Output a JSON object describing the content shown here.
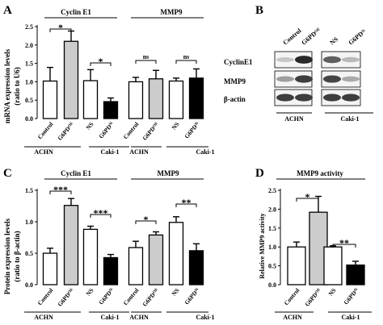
{
  "figure": {
    "panel_letters": [
      "A",
      "B",
      "C",
      "D"
    ]
  },
  "chart_data": [
    {
      "panel": "A",
      "type": "bar",
      "ylabel": "mRNA expression levels",
      "ylabel_sub": "(ratio to U6)",
      "ylim": [
        0,
        2.5
      ],
      "yticks": [
        "0.0",
        "0.5",
        "1.0",
        "1.5",
        "2.0",
        "2.5"
      ],
      "groups": [
        "Cyclin E1",
        "MMP9"
      ],
      "categories": [
        "Control",
        "G6PD",
        "NS",
        "G6PD",
        "Control",
        "G6PD",
        "NS",
        "G6PD"
      ],
      "superscripts": [
        "",
        "OE",
        "",
        "Si",
        "",
        "OE",
        "",
        "Si"
      ],
      "values": [
        1.02,
        2.1,
        1.03,
        0.46,
        1.0,
        1.08,
        1.02,
        1.1
      ],
      "errors": [
        0.37,
        0.28,
        0.3,
        0.1,
        0.12,
        0.23,
        0.08,
        0.25
      ],
      "fills": [
        "#ffffff",
        "#cccccc",
        "#ffffff",
        "#000000",
        "#ffffff",
        "#cccccc",
        "#ffffff",
        "#000000"
      ],
      "cell_lines": [
        "ACHN",
        "Caki-1",
        "ACHN",
        "Caki-1"
      ],
      "significance": [
        "*",
        "*",
        "ns",
        "ns"
      ]
    },
    {
      "panel": "C",
      "type": "bar",
      "ylabel": "Protein expression levels",
      "ylabel_sub": "(ratio to β-actin)",
      "ylim": [
        0,
        1.5
      ],
      "yticks": [
        "0.0",
        "0.5",
        "1.0",
        "1.5"
      ],
      "groups": [
        "Cyclin E1",
        "MMP9"
      ],
      "categories": [
        "Control",
        "G6PD",
        "NS",
        "G6PD",
        "Control",
        "G6PD",
        "NS",
        "G6PD"
      ],
      "superscripts": [
        "",
        "OE",
        "",
        "Si",
        "",
        "OE",
        "",
        "Si"
      ],
      "values": [
        0.5,
        1.26,
        0.88,
        0.43,
        0.59,
        0.79,
        0.99,
        0.54
      ],
      "errors": [
        0.08,
        0.11,
        0.05,
        0.05,
        0.1,
        0.05,
        0.09,
        0.11
      ],
      "fills": [
        "#ffffff",
        "#cccccc",
        "#ffffff",
        "#000000",
        "#ffffff",
        "#cccccc",
        "#ffffff",
        "#000000"
      ],
      "cell_lines": [
        "ACHN",
        "Caki-1",
        "ACHN",
        "Caki-1"
      ],
      "significance": [
        "***",
        "***",
        "*",
        "**"
      ]
    },
    {
      "panel": "D",
      "type": "bar",
      "title": "MMP9 activity",
      "ylabel": "Relative MMP9 activity",
      "ylim": [
        0,
        2.5
      ],
      "yticks": [
        "0.0",
        "0.5",
        "1.0",
        "1.5",
        "2.0",
        "2.5"
      ],
      "categories": [
        "Control",
        "G6PD",
        "NS",
        "G6PD"
      ],
      "superscripts": [
        "",
        "OE",
        "",
        "Si"
      ],
      "values": [
        1.0,
        1.92,
        1.0,
        0.52
      ],
      "errors": [
        0.13,
        0.42,
        0.03,
        0.1
      ],
      "fills": [
        "#ffffff",
        "#cccccc",
        "#ffffff",
        "#000000"
      ],
      "cell_lines": [
        "ACHN",
        "Caki-1"
      ],
      "significance": [
        "*",
        "**"
      ]
    }
  ],
  "blot": {
    "panel": "B",
    "columns": [
      "Control",
      "G6PD",
      "NS",
      "G6PD"
    ],
    "superscripts": [
      "",
      "OE",
      "",
      "Si"
    ],
    "rows": [
      "CyclinE1",
      "MMP9",
      "β-actin"
    ],
    "cell_lines": [
      "ACHN",
      "Caki-1"
    ],
    "intensity": [
      [
        0.22,
        0.95,
        0.7,
        0.28
      ],
      [
        0.4,
        0.85,
        0.82,
        0.35
      ],
      [
        0.85,
        0.85,
        0.85,
        0.85
      ]
    ]
  }
}
